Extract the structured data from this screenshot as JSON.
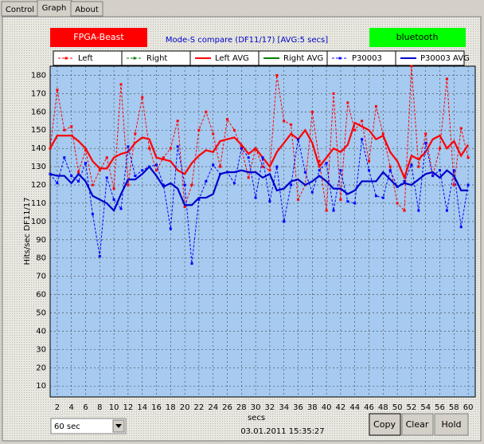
{
  "tabs": [
    "Control",
    "Graph",
    "About"
  ],
  "source_left": "FPGA-Beast",
  "source_right": "bluetooth",
  "range_select": "60 sec",
  "timestamp": "03.01.2011 15:35:27",
  "buttons": [
    "Copy",
    "Clear",
    "Hold"
  ],
  "chart_data": {
    "type": "line",
    "title": "Mode-S compare (DF11/17) [AVG:5 secs]",
    "x_label": "secs",
    "y_label": "Hits/sec DF11/17",
    "x": [
      1,
      2,
      3,
      4,
      5,
      6,
      7,
      8,
      9,
      10,
      11,
      12,
      13,
      14,
      15,
      16,
      17,
      18,
      19,
      20,
      21,
      22,
      23,
      24,
      25,
      26,
      27,
      28,
      29,
      30,
      31,
      32,
      33,
      34,
      35,
      36,
      37,
      38,
      39,
      40,
      41,
      42,
      43,
      44,
      45,
      46,
      47,
      48,
      49,
      50,
      51,
      52,
      53,
      54,
      55,
      56,
      57,
      58,
      59,
      60
    ],
    "xlim": [
      1,
      61
    ],
    "xticks": [
      2,
      4,
      6,
      8,
      10,
      12,
      14,
      16,
      18,
      20,
      22,
      24,
      26,
      28,
      30,
      32,
      34,
      36,
      38,
      40,
      42,
      44,
      46,
      48,
      50,
      52,
      54,
      56,
      58,
      60
    ],
    "ylim": [
      4,
      185
    ],
    "yticks": [
      10,
      20,
      30,
      40,
      50,
      60,
      70,
      80,
      90,
      100,
      110,
      120,
      130,
      140,
      150,
      160,
      170,
      180
    ],
    "grid": true,
    "series": [
      {
        "name": "Left",
        "color": "#ff0000",
        "style": "dashed",
        "markers": true,
        "values": [
          140,
          172,
          150,
          152,
          127,
          139,
          120,
          128,
          135,
          118,
          175,
          120,
          148,
          168,
          140,
          128,
          135,
          140,
          155,
          108,
          120,
          150,
          160,
          148,
          130,
          156,
          150,
          140,
          124,
          140,
          130,
          128,
          180,
          155,
          153,
          112,
          120,
          160,
          133,
          106,
          170,
          112,
          165,
          150,
          155,
          133,
          163,
          148,
          130,
          110,
          106,
          185,
          130,
          148,
          125,
          140,
          178,
          120,
          151,
          135
        ]
      },
      {
        "name": "Right",
        "color": "#008000",
        "style": "dashed",
        "markers": true,
        "values": [
          null,
          null,
          null,
          null,
          null,
          null,
          null,
          null,
          null,
          null,
          null,
          null,
          null,
          null,
          null,
          null,
          null,
          null,
          null,
          null,
          null,
          null,
          null,
          null,
          null,
          null,
          null,
          null,
          null,
          null,
          null,
          null,
          null,
          null,
          null,
          null,
          null,
          null,
          null,
          null,
          null,
          null,
          null,
          null,
          null,
          null,
          null,
          null,
          null,
          null,
          null,
          null,
          null,
          null,
          null,
          null,
          null,
          null,
          null,
          null
        ]
      },
      {
        "name": "Left AVG",
        "color": "#ff0000",
        "style": "solid",
        "markers": false,
        "values": [
          140,
          147,
          147,
          147,
          144,
          140,
          133,
          129,
          129,
          135,
          137,
          138,
          143,
          146,
          145,
          135,
          134,
          133,
          128,
          126,
          132,
          136,
          139,
          138,
          144,
          145,
          146,
          142,
          137,
          140,
          135,
          130,
          138,
          143,
          148,
          145,
          150,
          143,
          130,
          135,
          140,
          138,
          142,
          154,
          152,
          150,
          145,
          147,
          138,
          133,
          124,
          136,
          134,
          138,
          145,
          147,
          140,
          144,
          136,
          142
        ]
      },
      {
        "name": "Right AVG",
        "color": "#008000",
        "style": "solid",
        "markers": false,
        "values": [
          null,
          null,
          null,
          null,
          null,
          null,
          null,
          null,
          null,
          null,
          null,
          null,
          null,
          null,
          null,
          null,
          null,
          null,
          null,
          null,
          null,
          null,
          null,
          null,
          null,
          null,
          null,
          null,
          null,
          null,
          null,
          null,
          null,
          null,
          null,
          null,
          null,
          null,
          null,
          null,
          null,
          null,
          null,
          null,
          null,
          null,
          null,
          null,
          null,
          null,
          null,
          null,
          null,
          null,
          null,
          null,
          null,
          null,
          null,
          null
        ]
      },
      {
        "name": "P30003",
        "color": "#0000ff",
        "style": "dashed",
        "markers": true,
        "values": [
          126,
          121,
          135,
          125,
          122,
          132,
          104,
          81,
          124,
          112,
          107,
          141,
          125,
          128,
          130,
          131,
          120,
          96,
          141,
          120,
          77,
          112,
          122,
          131,
          126,
          127,
          121,
          140,
          135,
          113,
          135,
          111,
          130,
          100,
          120,
          145,
          127,
          116,
          128,
          132,
          106,
          128,
          111,
          110,
          145,
          128,
          114,
          113,
          128,
          119,
          122,
          131,
          106,
          143,
          125,
          128,
          106,
          128,
          97,
          120
        ]
      },
      {
        "name": "P30003 AVG",
        "color": "#0000cc",
        "style": "solid",
        "markers": false,
        "values": [
          126,
          125,
          125,
          121,
          126,
          122,
          114,
          112,
          110,
          106,
          115,
          123,
          123,
          126,
          130,
          125,
          119,
          121,
          118,
          109,
          109,
          113,
          113,
          115,
          126,
          127,
          127,
          128,
          127,
          127,
          124,
          126,
          117,
          118,
          122,
          123,
          120,
          122,
          125,
          122,
          118,
          118,
          115,
          117,
          122,
          122,
          122,
          127,
          123,
          119,
          121,
          120,
          123,
          126,
          127,
          124,
          128,
          125,
          117,
          117
        ]
      }
    ]
  }
}
